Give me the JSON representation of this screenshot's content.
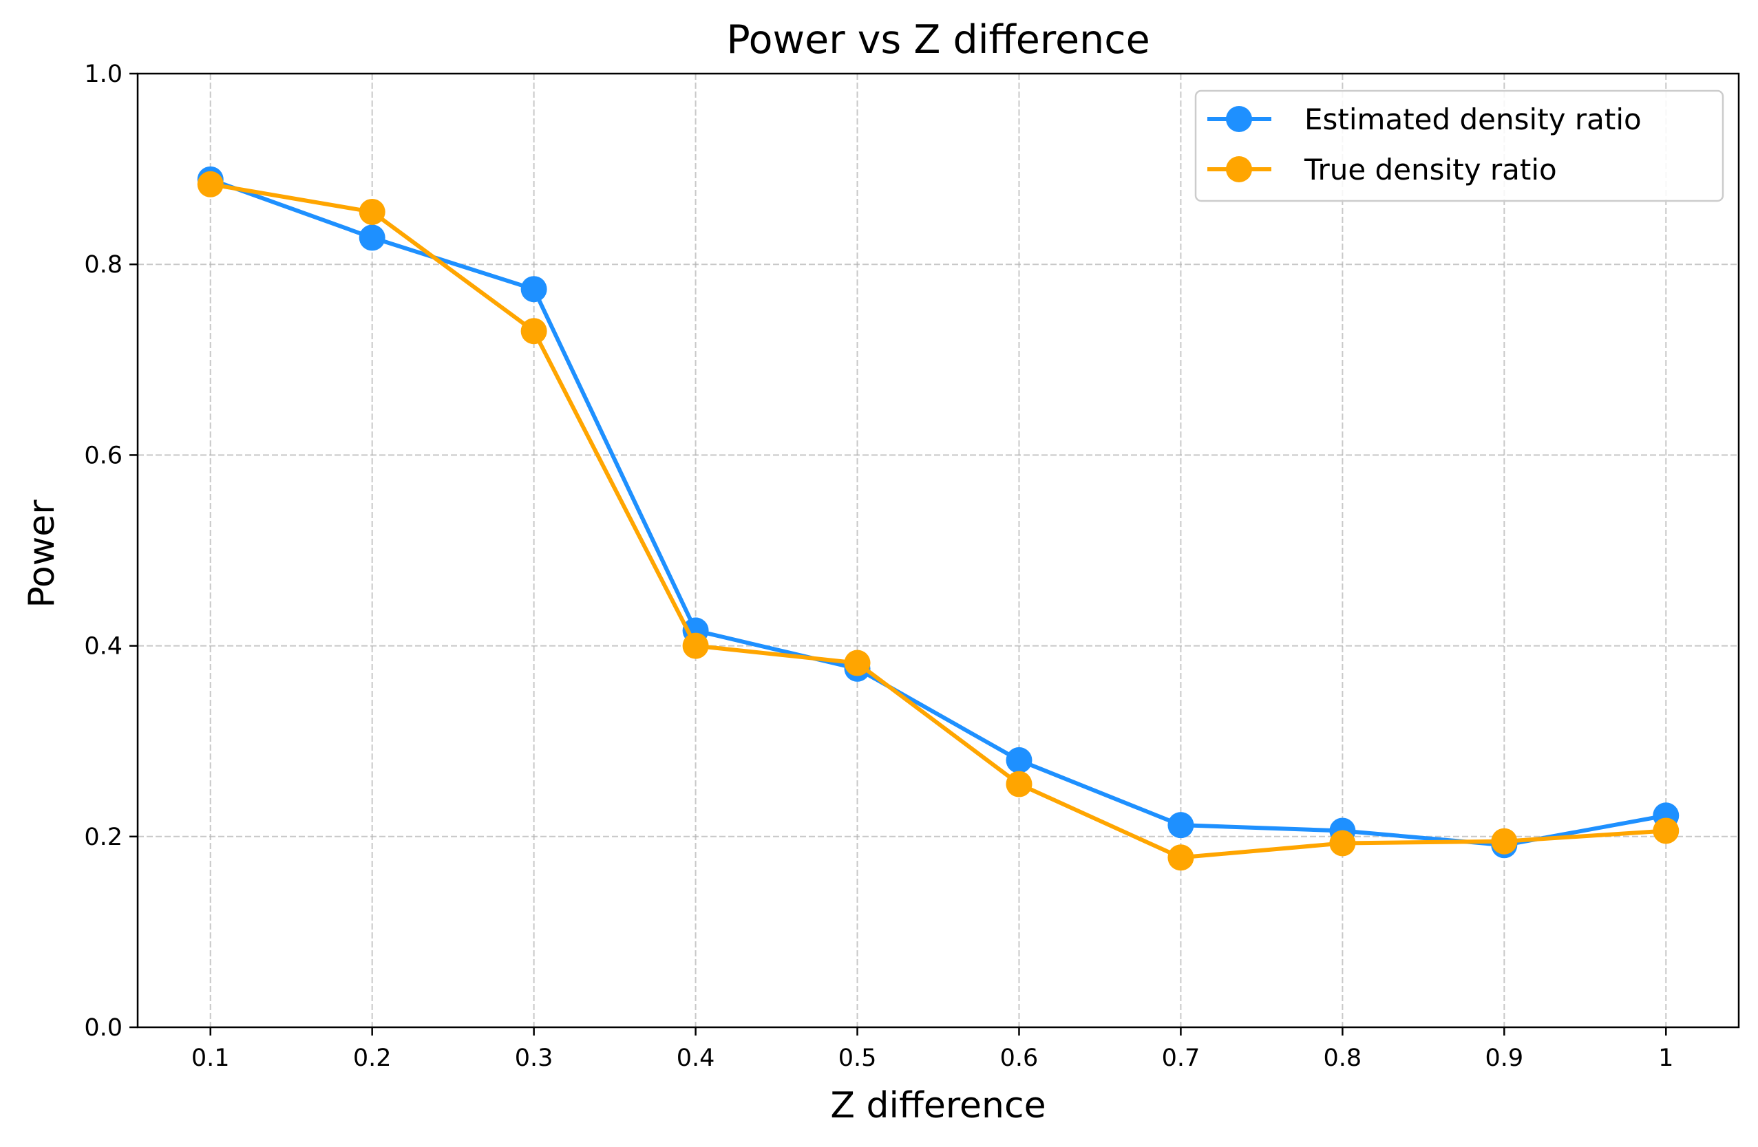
{
  "chart_data": {
    "type": "line",
    "title": "Power vs Z difference",
    "xlabel": "Z difference",
    "ylabel": "Power",
    "x": [
      0.1,
      0.2,
      0.3,
      0.4,
      0.5,
      0.6,
      0.7,
      0.8,
      0.9,
      1.0
    ],
    "x_tick_labels": [
      "0.1",
      "0.2",
      "0.3",
      "0.4",
      "0.5",
      "0.6",
      "0.7",
      "0.8",
      "0.9",
      "1"
    ],
    "y_ticks": [
      0.0,
      0.2,
      0.4,
      0.6,
      0.8,
      1.0
    ],
    "y_tick_labels": [
      "0.0",
      "0.2",
      "0.4",
      "0.6",
      "0.8",
      "1.0"
    ],
    "ylim": [
      0,
      1
    ],
    "xlim": [
      0.055,
      1.045
    ],
    "grid": true,
    "legend_position": "top-right",
    "series": [
      {
        "name": "Estimated density ratio",
        "color": "#1e90ff",
        "values": [
          0.889,
          0.828,
          0.774,
          0.416,
          0.376,
          0.28,
          0.212,
          0.206,
          0.191,
          0.222
        ]
      },
      {
        "name": "True density ratio",
        "color": "#ffa500",
        "values": [
          0.884,
          0.855,
          0.73,
          0.4,
          0.382,
          0.255,
          0.178,
          0.193,
          0.195,
          0.206
        ]
      }
    ]
  }
}
